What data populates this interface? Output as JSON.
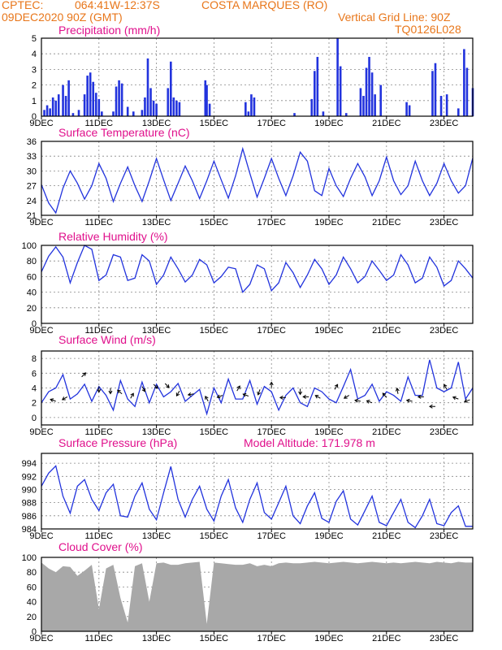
{
  "header": {
    "source": "CPTEC:",
    "coords": "064:41W-12:37S",
    "location": "COSTA MARQUES (RO)",
    "datetime": "09DEC2020 90Z (GMT)",
    "grid_note": "Vertical Grid Line: 90Z",
    "model_id": "TQ0126L028"
  },
  "colors": {
    "header": "#e8761a",
    "title": "#e0108c",
    "line": "#2233dd",
    "cloud": "#a8a8a8",
    "grid": "#888888"
  },
  "x_labels": [
    "9DEC",
    "11DEC",
    "13DEC",
    "15DEC",
    "17DEC",
    "19DEC",
    "21DEC",
    "23DEC"
  ],
  "chart_data": [
    {
      "type": "bar",
      "title": "Precipitation (mm/h)",
      "ylim": [
        0,
        5
      ],
      "yticks": [
        0,
        1,
        2,
        3,
        4,
        5
      ],
      "x_range_days": [
        9,
        24
      ],
      "bars": [
        [
          9.1,
          0.4
        ],
        [
          9.2,
          0.7
        ],
        [
          9.3,
          0.5
        ],
        [
          9.4,
          1.2
        ],
        [
          9.5,
          1.0
        ],
        [
          9.6,
          1.4
        ],
        [
          9.75,
          2.0
        ],
        [
          9.85,
          1.3
        ],
        [
          9.95,
          2.3
        ],
        [
          10.1,
          0.2
        ],
        [
          10.3,
          0.4
        ],
        [
          10.5,
          1.4
        ],
        [
          10.6,
          2.6
        ],
        [
          10.7,
          2.8
        ],
        [
          10.8,
          2.2
        ],
        [
          10.9,
          1.5
        ],
        [
          11.0,
          1.1
        ],
        [
          11.1,
          0.3
        ],
        [
          11.5,
          0.3
        ],
        [
          11.6,
          1.9
        ],
        [
          11.7,
          2.3
        ],
        [
          11.8,
          2.1
        ],
        [
          12.0,
          0.6
        ],
        [
          12.2,
          0.3
        ],
        [
          12.5,
          0.4
        ],
        [
          12.6,
          1.2
        ],
        [
          12.7,
          3.7
        ],
        [
          12.8,
          1.8
        ],
        [
          12.9,
          1.0
        ],
        [
          13.0,
          0.8
        ],
        [
          13.4,
          1.8
        ],
        [
          13.5,
          3.5
        ],
        [
          13.6,
          1.2
        ],
        [
          13.7,
          1.0
        ],
        [
          13.8,
          0.9
        ],
        [
          14.7,
          2.3
        ],
        [
          14.75,
          2.0
        ],
        [
          14.85,
          0.8
        ],
        [
          16.1,
          0.9
        ],
        [
          16.2,
          0.3
        ],
        [
          16.3,
          1.4
        ],
        [
          16.4,
          1.2
        ],
        [
          17.8,
          0.2
        ],
        [
          18.4,
          1.1
        ],
        [
          18.5,
          2.9
        ],
        [
          18.6,
          3.8
        ],
        [
          18.8,
          0.3
        ],
        [
          19.3,
          5.0
        ],
        [
          19.4,
          3.2
        ],
        [
          19.6,
          0.2
        ],
        [
          20.1,
          1.8
        ],
        [
          20.2,
          1.3
        ],
        [
          20.3,
          3.1
        ],
        [
          20.4,
          3.8
        ],
        [
          20.5,
          2.8
        ],
        [
          20.6,
          1.4
        ],
        [
          20.8,
          2.0
        ],
        [
          21.7,
          0.9
        ],
        [
          21.8,
          0.7
        ],
        [
          22.6,
          2.9
        ],
        [
          22.7,
          3.4
        ],
        [
          22.9,
          1.3
        ],
        [
          23.1,
          1.4
        ],
        [
          23.5,
          0.5
        ],
        [
          23.7,
          4.3
        ],
        [
          23.8,
          3.1
        ],
        [
          24.0,
          1.8
        ]
      ]
    },
    {
      "type": "line",
      "title": "Surface Temperature (nC)",
      "ylim": [
        21,
        36
      ],
      "yticks": [
        21,
        24,
        27,
        30,
        33,
        36
      ],
      "x": [
        9.0,
        9.25,
        9.5,
        9.75,
        10.0,
        10.25,
        10.5,
        10.75,
        11.0,
        11.25,
        11.5,
        11.75,
        12.0,
        12.25,
        12.5,
        12.75,
        13.0,
        13.25,
        13.5,
        13.75,
        14.0,
        14.25,
        14.5,
        14.75,
        15.0,
        15.25,
        15.5,
        15.75,
        16.0,
        16.25,
        16.5,
        16.75,
        17.0,
        17.25,
        17.5,
        17.75,
        18.0,
        18.25,
        18.5,
        18.75,
        19.0,
        19.25,
        19.5,
        19.75,
        20.0,
        20.25,
        20.5,
        20.75,
        21.0,
        21.25,
        21.5,
        21.75,
        22.0,
        22.25,
        22.5,
        22.75,
        23.0,
        23.25,
        23.5,
        23.75,
        24.0
      ],
      "y": [
        27.2,
        23.5,
        21.5,
        26.5,
        30.0,
        27.5,
        24.3,
        27.0,
        31.5,
        28.5,
        23.8,
        27.5,
        30.8,
        27.0,
        23.8,
        28.0,
        32.5,
        28.2,
        24.0,
        27.5,
        31.0,
        28.0,
        24.4,
        28.0,
        32.0,
        28.2,
        24.5,
        29.0,
        34.5,
        29.5,
        24.7,
        28.5,
        32.5,
        28.5,
        25.0,
        29.0,
        33.8,
        32.0,
        26.0,
        25.0,
        30.5,
        27.0,
        24.8,
        28.5,
        31.5,
        28.8,
        25.0,
        28.0,
        32.8,
        28.0,
        25.2,
        27.0,
        32.0,
        28.0,
        25.0,
        27.5,
        31.5,
        28.0,
        25.5,
        27.0,
        32.6
      ]
    },
    {
      "type": "line",
      "title": "Relative Humidity (%)",
      "ylim": [
        0,
        100
      ],
      "yticks": [
        0,
        20,
        40,
        60,
        80,
        100
      ],
      "x": [
        9.0,
        9.25,
        9.5,
        9.75,
        10.0,
        10.25,
        10.5,
        10.75,
        11.0,
        11.25,
        11.5,
        11.75,
        12.0,
        12.25,
        12.5,
        12.75,
        13.0,
        13.25,
        13.5,
        13.75,
        14.0,
        14.25,
        14.5,
        14.75,
        15.0,
        15.25,
        15.5,
        15.75,
        16.0,
        16.25,
        16.5,
        16.75,
        17.0,
        17.25,
        17.5,
        17.75,
        18.0,
        18.25,
        18.5,
        18.75,
        19.0,
        19.25,
        19.5,
        19.75,
        20.0,
        20.25,
        20.5,
        20.75,
        21.0,
        21.25,
        21.5,
        21.75,
        22.0,
        22.25,
        22.5,
        22.75,
        23.0,
        23.25,
        23.5,
        23.75,
        24.0
      ],
      "y": [
        66,
        86,
        98,
        85,
        52,
        78,
        100,
        95,
        55,
        62,
        88,
        85,
        55,
        58,
        88,
        80,
        50,
        62,
        85,
        70,
        53,
        62,
        82,
        75,
        52,
        60,
        72,
        70,
        40,
        50,
        75,
        70,
        42,
        52,
        78,
        65,
        46,
        62,
        82,
        70,
        50,
        62,
        85,
        70,
        52,
        60,
        80,
        68,
        55,
        62,
        88,
        75,
        52,
        58,
        85,
        72,
        48,
        55,
        80,
        70,
        58
      ]
    },
    {
      "type": "line",
      "title": "Surface Wind (m/s)",
      "ylim": [
        -1,
        9
      ],
      "yticks": [
        0,
        2,
        4,
        6,
        8
      ],
      "x": [
        9.0,
        9.25,
        9.5,
        9.75,
        10.0,
        10.25,
        10.5,
        10.75,
        11.0,
        11.25,
        11.5,
        11.75,
        12.0,
        12.25,
        12.5,
        12.75,
        13.0,
        13.25,
        13.5,
        13.75,
        14.0,
        14.25,
        14.5,
        14.75,
        15.0,
        15.25,
        15.5,
        15.75,
        16.0,
        16.25,
        16.5,
        16.75,
        17.0,
        17.25,
        17.5,
        17.75,
        18.0,
        18.25,
        18.5,
        18.75,
        19.0,
        19.25,
        19.5,
        19.75,
        20.0,
        20.25,
        20.5,
        20.75,
        21.0,
        21.25,
        21.5,
        21.75,
        22.0,
        22.25,
        22.5,
        22.75,
        23.0,
        23.25,
        23.5,
        23.75,
        24.0
      ],
      "y": [
        2.0,
        3.5,
        4.0,
        5.8,
        2.5,
        3.2,
        4.5,
        2.2,
        4.2,
        3.0,
        1.0,
        5.0,
        2.5,
        1.5,
        4.8,
        2.0,
        4.5,
        2.8,
        3.5,
        4.6,
        2.2,
        3.0,
        3.8,
        0.5,
        4.0,
        2.0,
        5.2,
        2.5,
        2.5,
        5.0,
        1.8,
        4.2,
        3.5,
        1.0,
        3.0,
        4.0,
        2.0,
        1.5,
        4.0,
        3.5,
        2.5,
        2.0,
        4.2,
        6.5,
        2.5,
        3.0,
        4.5,
        2.2,
        3.5,
        3.0,
        2.2,
        5.5,
        3.0,
        3.0,
        7.8,
        4.0,
        3.5,
        4.0,
        7.5,
        2.5,
        4.0
      ],
      "arrows": [
        {
          "x": 9.5,
          "y": 2.2,
          "dir": 200
        },
        {
          "x": 9.9,
          "y": 2.8,
          "dir": 150
        },
        {
          "x": 10.4,
          "y": 5.5,
          "dir": 315
        },
        {
          "x": 11.0,
          "y": 4.2,
          "dir": 90
        },
        {
          "x": 11.4,
          "y": 4.0,
          "dir": 90
        },
        {
          "x": 11.8,
          "y": 3.2,
          "dir": 220
        },
        {
          "x": 12.1,
          "y": 2.6,
          "dir": 300
        },
        {
          "x": 12.5,
          "y": 4.2,
          "dir": 60
        },
        {
          "x": 12.9,
          "y": 4.5,
          "dir": 45
        },
        {
          "x": 13.3,
          "y": 4.6,
          "dir": 45
        },
        {
          "x": 13.8,
          "y": 3.6,
          "dir": 120
        },
        {
          "x": 14.3,
          "y": 3.2,
          "dir": 170
        },
        {
          "x": 14.8,
          "y": 2.2,
          "dir": 240
        },
        {
          "x": 15.3,
          "y": 3.0,
          "dir": 160
        },
        {
          "x": 15.8,
          "y": 3.6,
          "dir": 300
        },
        {
          "x": 16.2,
          "y": 2.9,
          "dir": 200
        },
        {
          "x": 16.6,
          "y": 3.8,
          "dir": 110
        },
        {
          "x": 17.0,
          "y": 4.0,
          "dir": 270
        },
        {
          "x": 17.5,
          "y": 2.7,
          "dir": 180
        },
        {
          "x": 18.0,
          "y": 3.9,
          "dir": 90
        },
        {
          "x": 18.3,
          "y": 2.8,
          "dir": 180
        },
        {
          "x": 18.7,
          "y": 2.6,
          "dir": 210
        },
        {
          "x": 19.2,
          "y": 3.8,
          "dir": 300
        },
        {
          "x": 19.7,
          "y": 3.0,
          "dir": 150
        },
        {
          "x": 20.1,
          "y": 2.2,
          "dir": 190
        },
        {
          "x": 20.5,
          "y": 2.0,
          "dir": 200
        },
        {
          "x": 21.0,
          "y": 2.7,
          "dir": 230
        },
        {
          "x": 21.4,
          "y": 3.2,
          "dir": 260
        },
        {
          "x": 21.9,
          "y": 2.2,
          "dir": 190
        },
        {
          "x": 22.3,
          "y": 2.8,
          "dir": 180
        },
        {
          "x": 22.7,
          "y": 1.5,
          "dir": 180
        },
        {
          "x": 23.1,
          "y": 3.8,
          "dir": 240
        },
        {
          "x": 23.5,
          "y": 2.5,
          "dir": 200
        },
        {
          "x": 23.9,
          "y": 2.4,
          "dir": 160
        }
      ]
    },
    {
      "type": "line",
      "title": "Surface Pressure (hPa)",
      "subtitle": "Model Altitude: 171.978 m",
      "ylim": [
        984,
        995.5
      ],
      "yticks": [
        984,
        986,
        988,
        990,
        992,
        994
      ],
      "x": [
        9.0,
        9.25,
        9.5,
        9.75,
        10.0,
        10.25,
        10.5,
        10.75,
        11.0,
        11.25,
        11.5,
        11.75,
        12.0,
        12.25,
        12.5,
        12.75,
        13.0,
        13.25,
        13.5,
        13.75,
        14.0,
        14.25,
        14.5,
        14.75,
        15.0,
        15.25,
        15.5,
        15.75,
        16.0,
        16.25,
        16.5,
        16.75,
        17.0,
        17.25,
        17.5,
        17.75,
        18.0,
        18.25,
        18.5,
        18.75,
        19.0,
        19.25,
        19.5,
        19.75,
        20.0,
        20.25,
        20.5,
        20.75,
        21.0,
        21.25,
        21.5,
        21.75,
        22.0,
        22.25,
        22.5,
        22.75,
        23.0,
        23.25,
        23.5,
        23.75,
        24.0
      ],
      "y": [
        990.5,
        992.5,
        993.6,
        989.0,
        986.4,
        990.5,
        991.5,
        988.5,
        986.8,
        989.5,
        990.8,
        986.0,
        985.8,
        989.0,
        991.0,
        987.0,
        985.4,
        989.5,
        993.5,
        988.5,
        985.8,
        988.5,
        990.5,
        987.0,
        985.2,
        989.0,
        991.5,
        987.2,
        985.0,
        988.5,
        991.0,
        986.5,
        985.5,
        988.0,
        990.5,
        986.0,
        984.8,
        987.5,
        989.5,
        985.6,
        985.0,
        988.2,
        989.8,
        985.5,
        984.6,
        986.8,
        989.0,
        985.0,
        984.5,
        986.5,
        988.5,
        985.0,
        984.2,
        986.0,
        988.5,
        984.8,
        984.5,
        986.5,
        987.5,
        984.4,
        984.4
      ]
    },
    {
      "type": "area",
      "title": "Cloud Cover (%)",
      "ylim": [
        0,
        100
      ],
      "yticks": [
        0,
        20,
        40,
        60,
        80,
        100
      ],
      "x": [
        9.0,
        9.25,
        9.5,
        9.75,
        10.0,
        10.25,
        10.5,
        10.75,
        11.0,
        11.25,
        11.5,
        11.75,
        12.0,
        12.25,
        12.5,
        12.75,
        13.0,
        13.25,
        13.5,
        13.75,
        14.0,
        14.25,
        14.5,
        14.75,
        15.0,
        15.25,
        15.5,
        15.75,
        16.0,
        16.25,
        16.5,
        16.75,
        17.0,
        17.25,
        17.5,
        17.75,
        18.0,
        18.25,
        18.5,
        18.75,
        19.0,
        19.25,
        19.5,
        19.75,
        20.0,
        20.25,
        20.5,
        20.75,
        21.0,
        21.25,
        21.5,
        21.75,
        22.0,
        22.25,
        22.5,
        22.75,
        23.0,
        23.25,
        23.5,
        23.75,
        24.0
      ],
      "y": [
        93,
        85,
        80,
        88,
        87,
        75,
        82,
        90,
        30,
        85,
        90,
        45,
        12,
        88,
        92,
        40,
        92,
        93,
        90,
        90,
        92,
        93,
        94,
        10,
        93,
        92,
        91,
        90,
        90,
        92,
        88,
        90,
        88,
        92,
        93,
        92,
        92,
        93,
        94,
        93,
        92,
        93,
        94,
        93,
        92,
        93,
        94,
        93,
        92,
        93,
        92,
        93,
        94,
        93,
        92,
        94,
        93,
        92,
        94,
        93,
        93
      ]
    }
  ]
}
